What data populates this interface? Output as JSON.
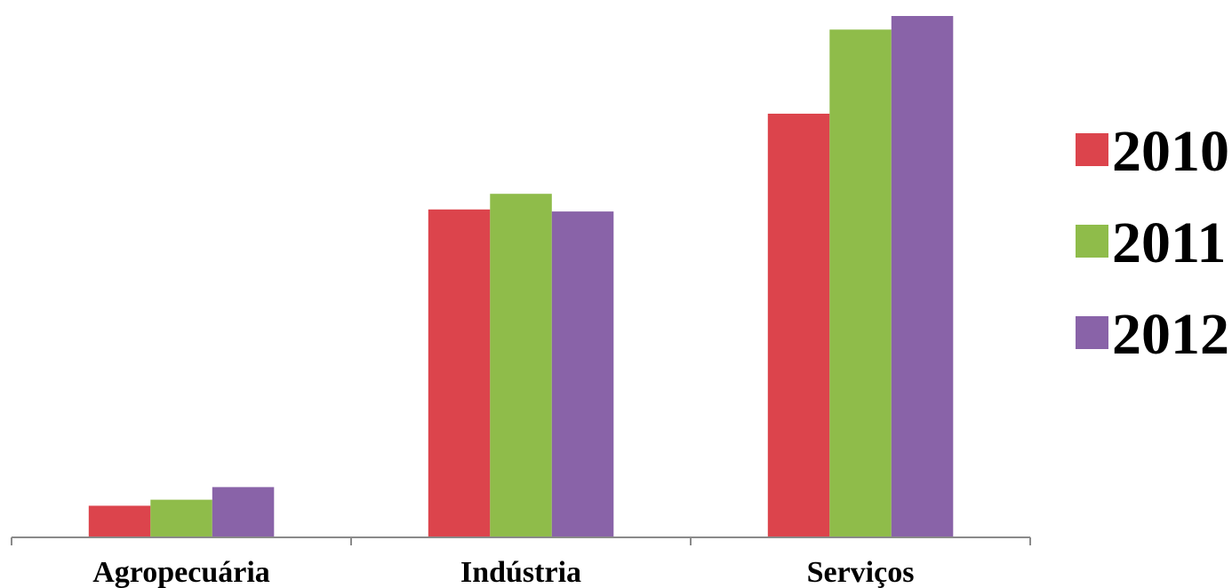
{
  "chart_data": {
    "type": "bar",
    "categories": [
      "Agropecuária",
      "Indústria",
      "Serviços"
    ],
    "series": [
      {
        "name": "2010",
        "color": "#DC444C",
        "values": [
          6.1,
          64.9,
          83.9
        ]
      },
      {
        "name": "2011",
        "color": "#8FBC4A",
        "values": [
          7.3,
          68.0,
          100.6
        ]
      },
      {
        "name": "2012",
        "color": "#8963A8",
        "values": [
          9.8,
          64.5,
          103.3
        ]
      }
    ],
    "ylim": [
      0,
      104
    ],
    "grid": false,
    "legend": {
      "position": "right"
    }
  }
}
